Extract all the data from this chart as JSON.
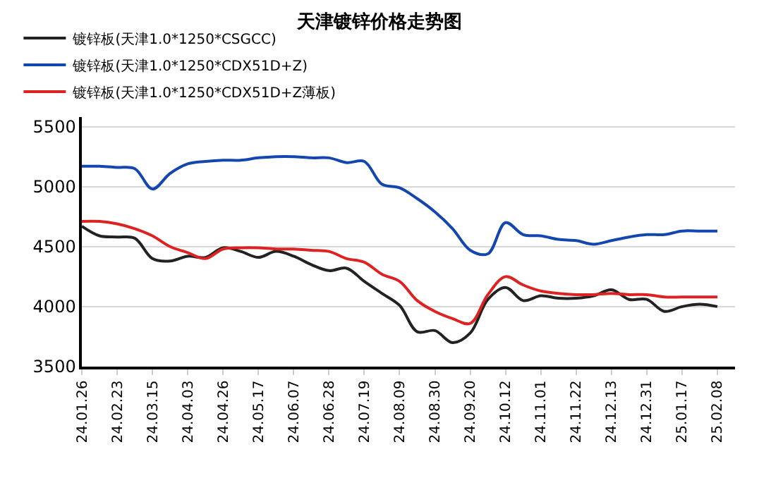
{
  "chart_data": {
    "type": "line",
    "title": "天津镀锌价格走势图",
    "categories": [
      "24.01.26",
      null,
      "24.02.23",
      null,
      "24.03.15",
      null,
      "24.04.03",
      null,
      "24.04.26",
      null,
      "24.05.17",
      null,
      "24.06.07",
      null,
      "24.06.28",
      null,
      "24.07.19",
      null,
      "24.08.09",
      null,
      "24.08.30",
      null,
      "24.09.20",
      null,
      "24.10.12",
      null,
      "24.11.01",
      null,
      "24.11.22",
      null,
      "24.12.13",
      null,
      "24.12.31",
      null,
      "25.01.17",
      null,
      "25.02.08"
    ],
    "series": [
      {
        "name": "镀锌板(天津1.0*1250*CSGCC)",
        "color": "#222222",
        "values": [
          4670,
          4590,
          4580,
          4570,
          4400,
          4380,
          4420,
          4410,
          4490,
          4460,
          4410,
          4460,
          4420,
          4350,
          4300,
          4320,
          4210,
          4110,
          4010,
          3790,
          3800,
          3700,
          3780,
          4060,
          4160,
          4050,
          4090,
          4070,
          4070,
          4090,
          4140,
          4060,
          4060,
          3960,
          4000,
          4020,
          4000
        ]
      },
      {
        "name": "镀锌板(天津1.0*1250*CDX51D+Z)",
        "color": "#1446b0",
        "values": [
          5170,
          5170,
          5160,
          5150,
          4980,
          5110,
          5190,
          5210,
          5220,
          5220,
          5240,
          5250,
          5250,
          5240,
          5240,
          5200,
          5210,
          5020,
          4990,
          4900,
          4790,
          4650,
          4470,
          4440,
          4700,
          4600,
          4590,
          4560,
          4550,
          4520,
          4550,
          4580,
          4600,
          4600,
          4630,
          4630,
          4630
        ]
      },
      {
        "name": "镀锌板(天津1.0*1250*CDX51D+Z薄板)",
        "color": "#dd2222",
        "values": [
          4710,
          4710,
          4690,
          4650,
          4590,
          4500,
          4450,
          4400,
          4480,
          4490,
          4490,
          4480,
          4480,
          4470,
          4460,
          4400,
          4370,
          4270,
          4210,
          4050,
          3960,
          3900,
          3860,
          4100,
          4250,
          4180,
          4130,
          4110,
          4100,
          4100,
          4110,
          4100,
          4100,
          4080,
          4080,
          4080,
          4080
        ]
      }
    ],
    "ylim": [
      3500,
      5580
    ],
    "yticks": [
      3500,
      4000,
      4500,
      5000,
      5500
    ],
    "grid": "y",
    "legend": "top",
    "marker": "none",
    "line_style": "solid"
  }
}
